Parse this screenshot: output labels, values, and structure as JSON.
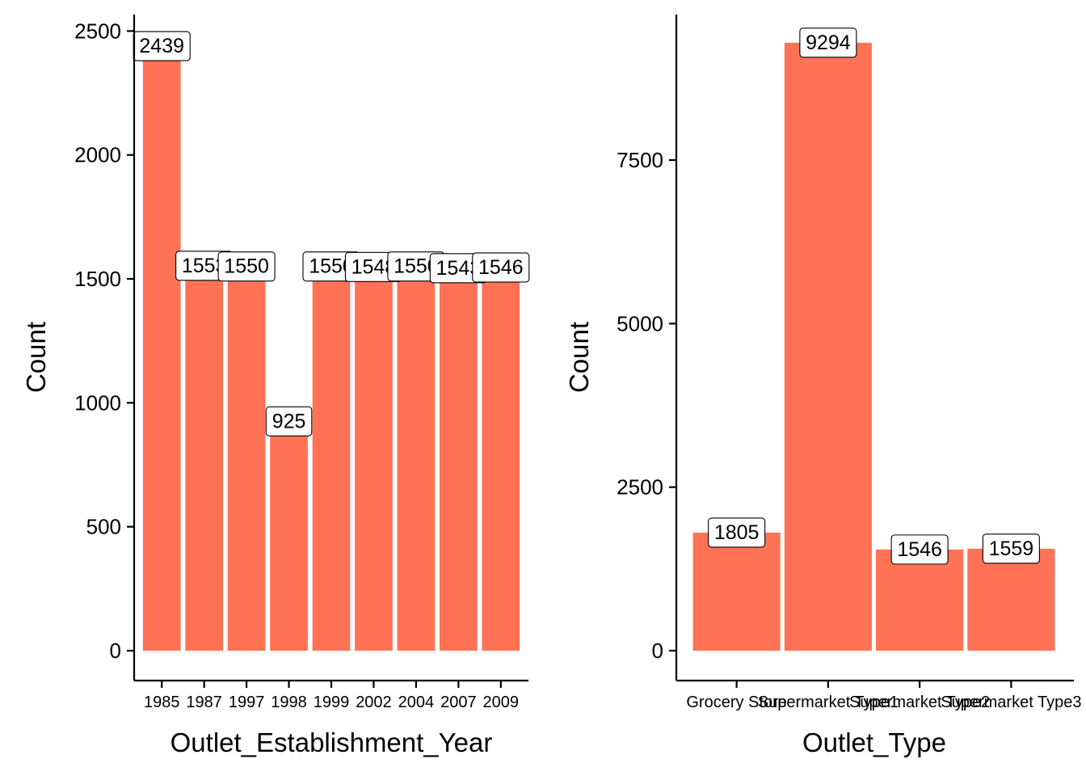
{
  "chart_data": [
    {
      "type": "bar",
      "xlabel": "Outlet_Establishment_Year",
      "ylabel": "Count",
      "categories": [
        "1985",
        "1987",
        "1997",
        "1998",
        "1999",
        "2002",
        "2004",
        "2007",
        "2009"
      ],
      "values": [
        2439,
        1553,
        1550,
        925,
        1550,
        1548,
        1550,
        1543,
        1546
      ],
      "data_labels": [
        "2439",
        "1553",
        "1550",
        "925",
        "1550",
        "1548",
        "1550",
        "1543",
        "1546"
      ],
      "y_ticks": [
        0,
        500,
        1000,
        1500,
        2000,
        2500
      ],
      "ylim": [
        0,
        2560
      ],
      "bar_color": "#ff7256",
      "grid": false,
      "legend": "none"
    },
    {
      "type": "bar",
      "xlabel": "Outlet_Type",
      "ylabel": "Count",
      "categories": [
        "Grocery Store",
        "Supermarket Type1",
        "Supermarket Type2",
        "Supermarket Type3"
      ],
      "values": [
        1805,
        9294,
        1546,
        1559
      ],
      "data_labels": [
        "1805",
        "9294",
        "1546",
        "1559"
      ],
      "y_ticks": [
        0,
        2500,
        5000,
        7500
      ],
      "ylim": [
        0,
        9700
      ],
      "bar_color": "#ff7256",
      "grid": false,
      "legend": "none"
    }
  ]
}
